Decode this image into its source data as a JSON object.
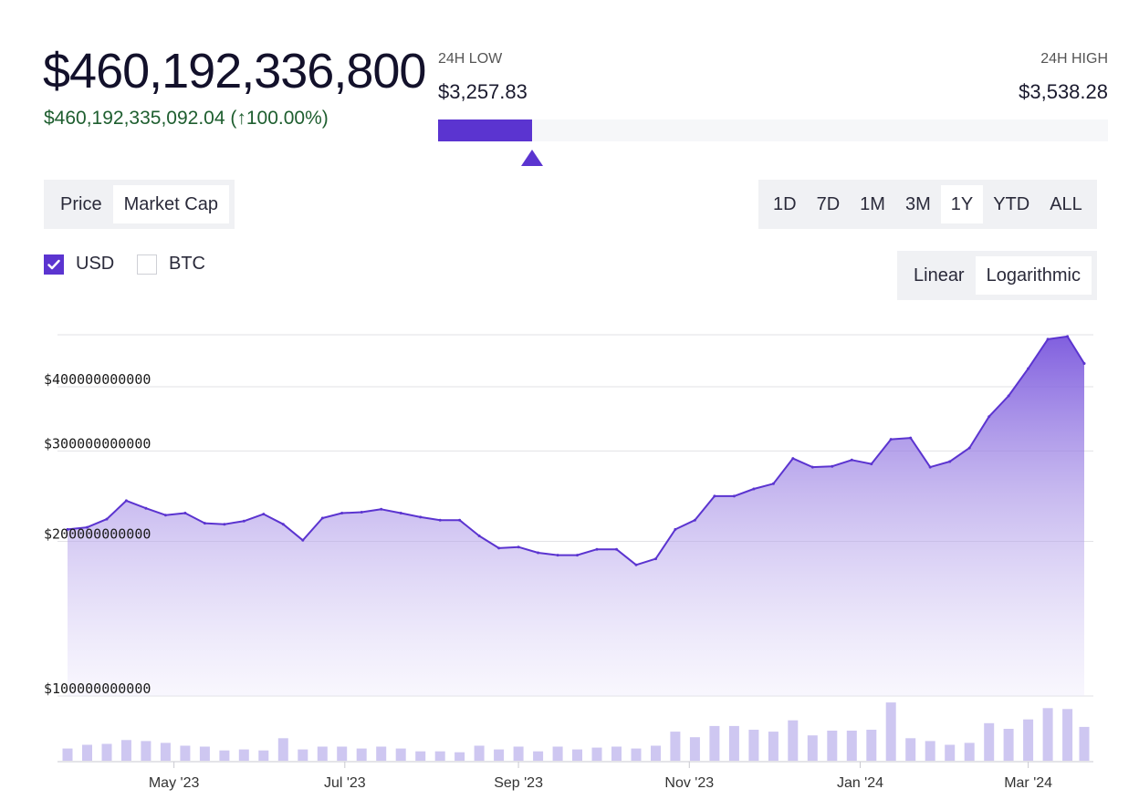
{
  "market_cap": {
    "value": "$460,192,336,800",
    "change_text": "$460,192,335,092.04 (↑100.00%)",
    "change_color": "#1e5e2f"
  },
  "range_24h": {
    "low_label": "24H LOW",
    "low_value": "$3,257.83",
    "high_label": "24H HIGH",
    "high_value": "$3,538.28",
    "fill_fraction": 0.14,
    "accent": "#5b34d0"
  },
  "metric_toggle": {
    "options": [
      "Price",
      "Market Cap"
    ],
    "selected": "Market Cap"
  },
  "range_tabs": {
    "options": [
      "1D",
      "7D",
      "1M",
      "3M",
      "1Y",
      "YTD",
      "ALL"
    ],
    "selected": "1Y"
  },
  "currency": {
    "usd": {
      "label": "USD",
      "checked": true
    },
    "btc": {
      "label": "BTC",
      "checked": false
    }
  },
  "scale_toggle": {
    "options": [
      "Linear",
      "Logarithmic"
    ],
    "selected": "Logarithmic"
  },
  "chart_data": {
    "type": "area",
    "scale": "log",
    "line_color": "#5b34d0",
    "volume_color": "#cec7f1",
    "y_ticks": [
      {
        "value": 100000000000,
        "label": "$100000000000"
      },
      {
        "value": 200000000000,
        "label": "$200000000000"
      },
      {
        "value": 300000000000,
        "label": "$300000000000"
      },
      {
        "value": 400000000000,
        "label": "$400000000000"
      }
    ],
    "x_ticks": [
      {
        "date": "2023-05-01",
        "label": "May '23"
      },
      {
        "date": "2023-07-01",
        "label": "Jul '23"
      },
      {
        "date": "2023-09-01",
        "label": "Sep '23"
      },
      {
        "date": "2023-11-01",
        "label": "Nov '23"
      },
      {
        "date": "2024-01-01",
        "label": "Jan '24"
      },
      {
        "date": "2024-03-01",
        "label": "Mar '24"
      }
    ],
    "series": [
      {
        "x": [
          "2023-03-24",
          "2023-03-31",
          "2023-04-07",
          "2023-04-14",
          "2023-04-21",
          "2023-04-28",
          "2023-05-05",
          "2023-05-12",
          "2023-05-19",
          "2023-05-26",
          "2023-06-02",
          "2023-06-09",
          "2023-06-16",
          "2023-06-23",
          "2023-06-30",
          "2023-07-07",
          "2023-07-14",
          "2023-07-21",
          "2023-07-28",
          "2023-08-04",
          "2023-08-11",
          "2023-08-18",
          "2023-08-25",
          "2023-09-01",
          "2023-09-08",
          "2023-09-15",
          "2023-09-22",
          "2023-09-29",
          "2023-10-06",
          "2023-10-13",
          "2023-10-20",
          "2023-10-27",
          "2023-11-03",
          "2023-11-10",
          "2023-11-17",
          "2023-11-24",
          "2023-12-01",
          "2023-12-08",
          "2023-12-15",
          "2023-12-22",
          "2023-12-29",
          "2024-01-05",
          "2024-01-12",
          "2024-01-19",
          "2024-01-26",
          "2024-02-02",
          "2024-02-09",
          "2024-02-16",
          "2024-02-23",
          "2024-03-01",
          "2024-03-08",
          "2024-03-15",
          "2024-03-21"
        ],
        "values": [
          211,
          213,
          221,
          240,
          232,
          225,
          227,
          217,
          216,
          219,
          226,
          216,
          201,
          222,
          227,
          228,
          231,
          227,
          223,
          220,
          220,
          205,
          194,
          195,
          190,
          188,
          188,
          193,
          193,
          180,
          185,
          211,
          220,
          245,
          245,
          253,
          259,
          290,
          279,
          280,
          288,
          283,
          316,
          318,
          279,
          286,
          304,
          350,
          384,
          434,
          495,
          501,
          444
        ]
      }
    ],
    "volume": {
      "x": [
        "2023-03-24",
        "2023-03-31",
        "2023-04-07",
        "2023-04-14",
        "2023-04-21",
        "2023-04-28",
        "2023-05-05",
        "2023-05-12",
        "2023-05-19",
        "2023-05-26",
        "2023-06-02",
        "2023-06-09",
        "2023-06-16",
        "2023-06-23",
        "2023-06-30",
        "2023-07-07",
        "2023-07-14",
        "2023-07-21",
        "2023-07-28",
        "2023-08-04",
        "2023-08-11",
        "2023-08-18",
        "2023-08-25",
        "2023-09-01",
        "2023-09-08",
        "2023-09-15",
        "2023-09-22",
        "2023-09-29",
        "2023-10-06",
        "2023-10-13",
        "2023-10-20",
        "2023-10-27",
        "2023-11-03",
        "2023-11-10",
        "2023-11-17",
        "2023-11-24",
        "2023-12-01",
        "2023-12-08",
        "2023-12-15",
        "2023-12-22",
        "2023-12-29",
        "2024-01-05",
        "2024-01-12",
        "2024-01-19",
        "2024-01-26",
        "2024-02-02",
        "2024-02-09",
        "2024-02-16",
        "2024-02-23",
        "2024-03-01",
        "2024-03-08",
        "2024-03-15",
        "2024-03-21"
      ],
      "values": [
        13,
        17,
        18,
        22,
        21,
        19,
        16,
        15,
        11,
        12,
        11,
        24,
        12,
        15,
        15,
        13,
        15,
        13,
        10,
        10,
        9,
        16,
        12,
        15,
        10,
        15,
        12,
        14,
        15,
        13,
        16,
        31,
        25,
        37,
        37,
        33,
        31,
        43,
        27,
        32,
        32,
        33,
        62,
        24,
        21,
        17,
        19,
        40,
        34,
        44,
        56,
        55,
        36
      ]
    }
  }
}
